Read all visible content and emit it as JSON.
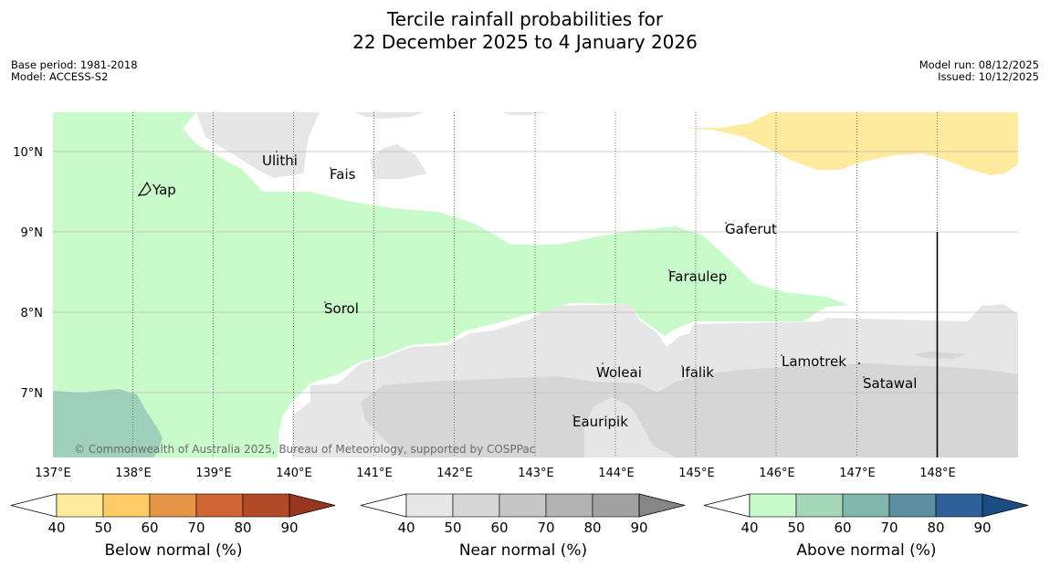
{
  "title": {
    "line1": "Tercile rainfall probabilities for",
    "line2": "22 December 2025 to 4 January 2026"
  },
  "meta_left": {
    "base_period": "Base period: 1981-2018",
    "model": "Model: ACCESS-S2"
  },
  "meta_right": {
    "model_run": "Model run: 08/12/2025",
    "issued": "Issued: 10/12/2025"
  },
  "map": {
    "lat_labels": [
      "10°N",
      "9°N",
      "8°N",
      "7°N"
    ],
    "lon_labels": [
      "137°E",
      "138°E",
      "139°E",
      "140°E",
      "141°E",
      "142°E",
      "143°E",
      "144°E",
      "145°E",
      "146°E",
      "147°E",
      "148°E"
    ],
    "places": [
      "Ulithi",
      "Fais",
      "Yap",
      "Gaferut",
      "Faraulep",
      "Sorol",
      "Woleai",
      "Ifalik",
      "Lamotrek",
      "Satawal",
      "Eauripik"
    ],
    "copyright": "© Commonwealth of Australia 2025, Bureau of Meteorology, supported by COSPPac"
  },
  "colorbars": [
    {
      "label": "Below normal (%)",
      "ticks": [
        "40",
        "50",
        "60",
        "70",
        "80",
        "90"
      ],
      "colors": [
        "#ffeb9e",
        "#fecb66",
        "#e69445",
        "#d06535",
        "#b34a27"
      ],
      "end_color": "#993620"
    },
    {
      "label": "Near normal (%)",
      "ticks": [
        "40",
        "50",
        "60",
        "70",
        "80",
        "90"
      ],
      "colors": [
        "#e7e7e7",
        "#d6d6d6",
        "#c6c6c6",
        "#b3b3b3",
        "#a1a1a1"
      ],
      "end_color": "#868686"
    },
    {
      "label": "Above normal (%)",
      "ticks": [
        "40",
        "50",
        "60",
        "70",
        "80",
        "90"
      ],
      "colors": [
        "#c9fbca",
        "#a6d7b8",
        "#80b6ab",
        "#5b8f9f",
        "#30609a"
      ],
      "end_color": "#1b4c83"
    }
  ]
}
